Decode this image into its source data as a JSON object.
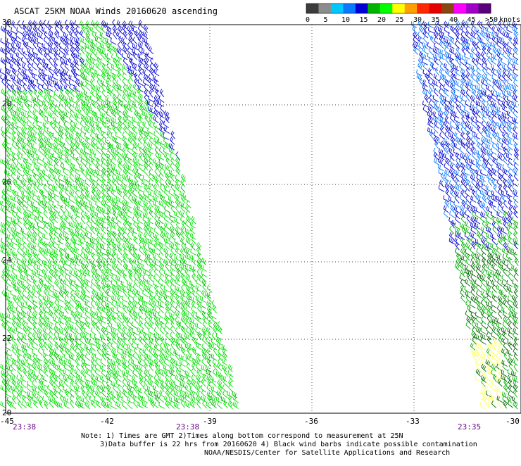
{
  "title": "ASCAT 25KM NOAA Winds 20160620 ascending",
  "legend": {
    "unit": "knots",
    "labels": [
      "0",
      "5",
      "10",
      "15",
      "20",
      "25",
      "30",
      "35",
      "40",
      "45",
      ">50"
    ],
    "colors": [
      "#3c3c3c",
      "#8c8c8c",
      "#00c8ff",
      "#0a78ff",
      "#0000d2",
      "#00b400",
      "#00ff00",
      "#ffff00",
      "#ffa000",
      "#ff2800",
      "#e60000",
      "#8b4513",
      "#ff00ff",
      "#a000c8",
      "#5a0078"
    ]
  },
  "map": {
    "lon_ticks": [
      "-45",
      "-42",
      "-39",
      "-36",
      "-33",
      "-30"
    ],
    "lat_ticks": [
      "30",
      "28",
      "26",
      "24",
      "22",
      "20"
    ],
    "pass_times": [
      "23:38",
      "23:38",
      "23:35"
    ]
  },
  "notes": {
    "line1": "Note: 1) Times are GMT 2)Times along bottom correspond to measurement at 25N",
    "line2": "3)Data buffer is 22 hrs from 20160620 4) Black wind barbs indicate possible contamination",
    "line3": "NOAA/NESDIS/Center for Satellite Applications and Research"
  }
}
